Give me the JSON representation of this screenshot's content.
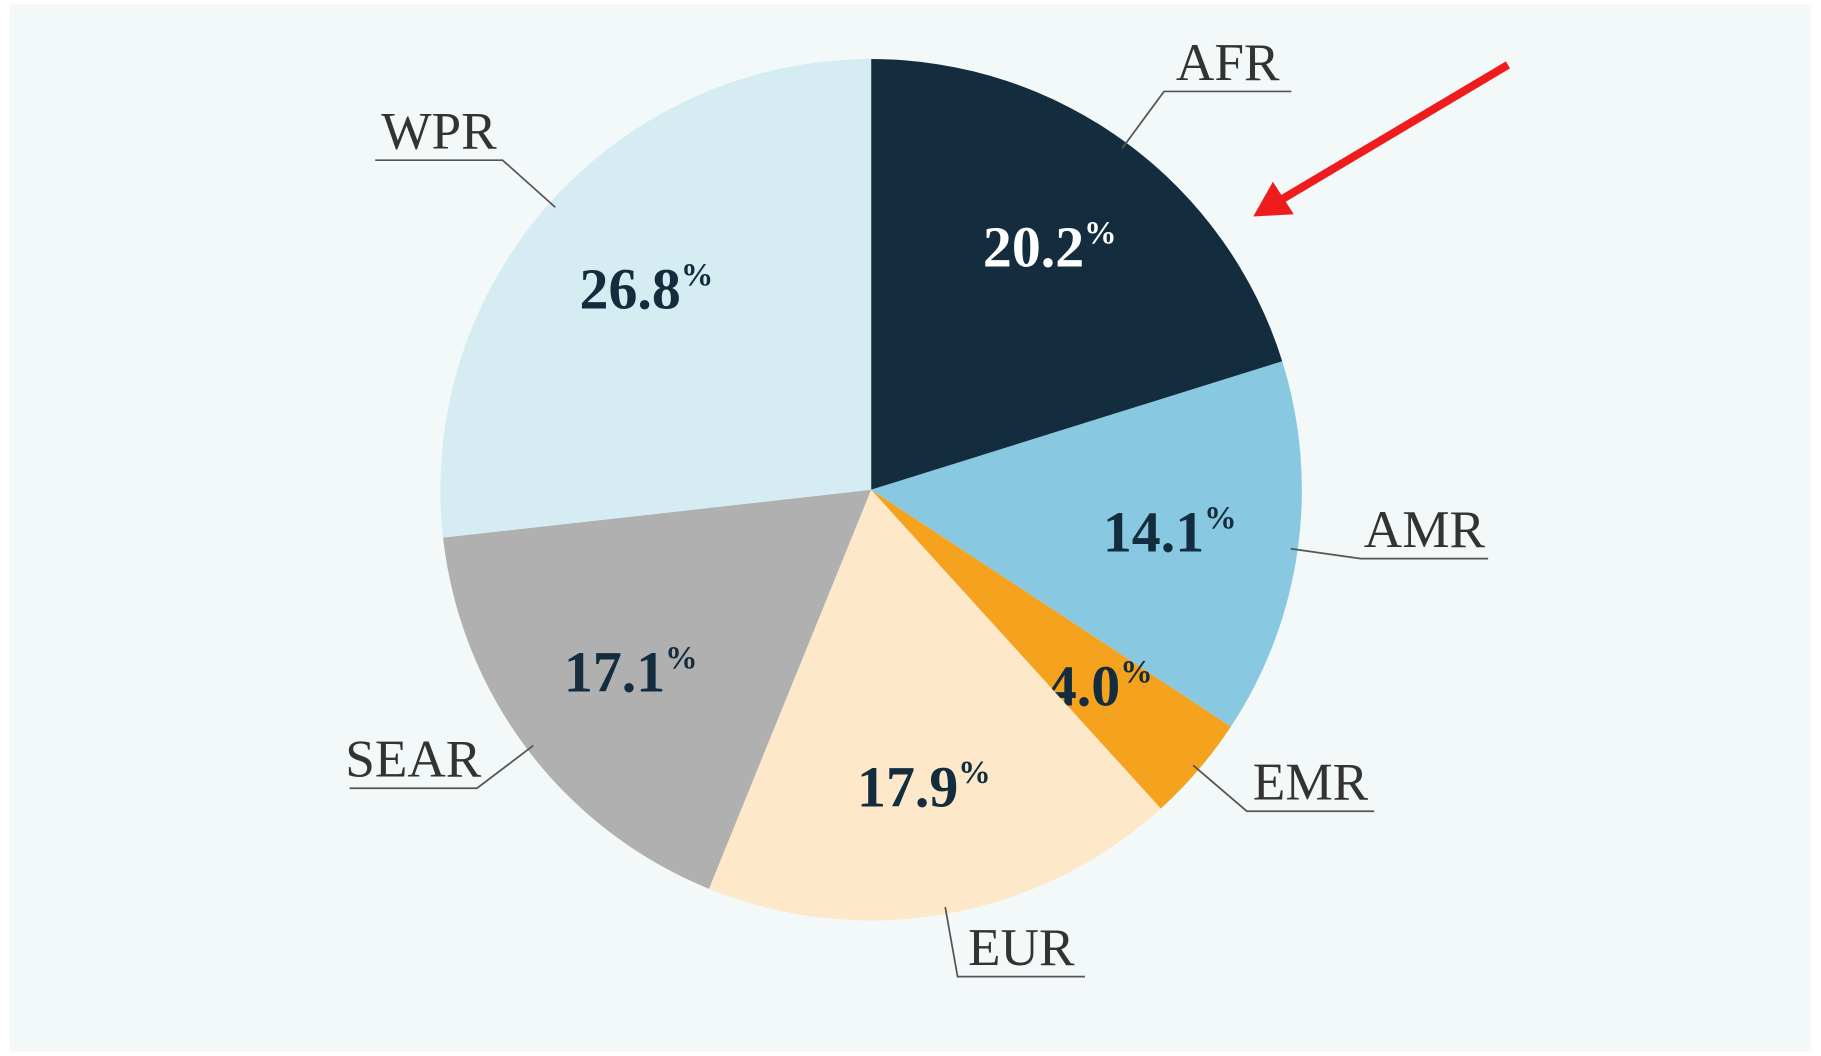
{
  "chart_data": {
    "type": "pie",
    "categories": [
      "AFR",
      "AMR",
      "EMR",
      "EUR",
      "SEAR",
      "WPR"
    ],
    "values": [
      20.2,
      14.1,
      4.0,
      17.9,
      17.1,
      26.8
    ],
    "value_labels": [
      "20.2%",
      "14.1%",
      "4.0%",
      "17.9%",
      "17.1%",
      "26.8%"
    ],
    "colors": [
      "#132d3e",
      "#88c9e1",
      "#f5a21e",
      "#fde9c9",
      "#b0b0b0",
      "#d4ecf2"
    ]
  }
}
